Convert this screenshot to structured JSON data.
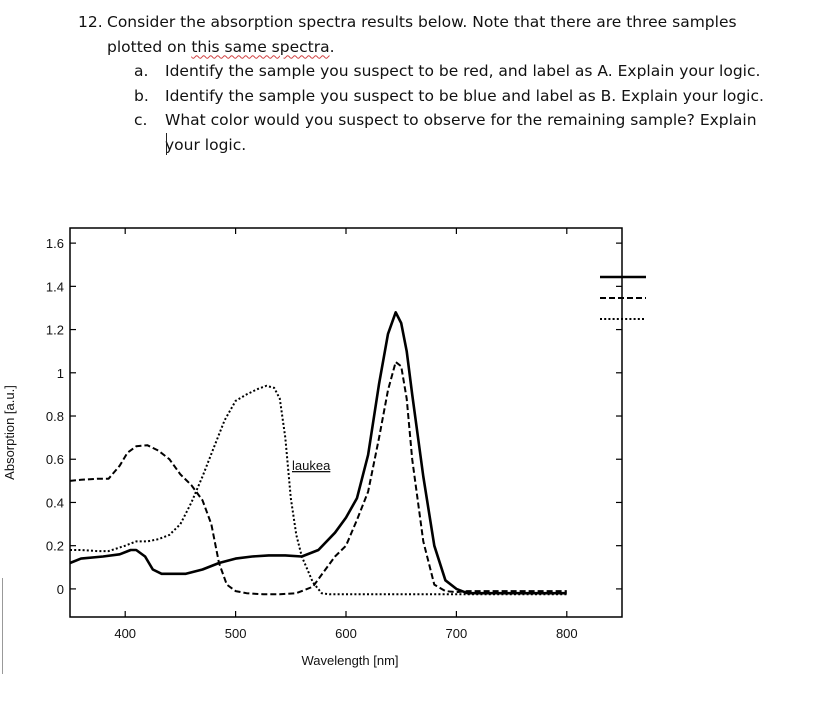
{
  "question": {
    "number": "12.",
    "text_part1": "Consider the absorption spectra results below. Note that there are three samples",
    "text_part2_prefix": "plotted on ",
    "text_part2_underlined": "this same spectra",
    "text_part2_suffix": ".",
    "parts": [
      {
        "letter": "a.",
        "text": "Identify the sample you suspect to be red, and label as A. Explain your logic."
      },
      {
        "letter": "b.",
        "text": "Identify the sample you suspect to be blue and label as B.  Explain your logic."
      },
      {
        "letter": "c.",
        "text": "What color would you suspect to observe for the remaining sample? Explain"
      }
    ],
    "part_c_continuation": "your logic."
  },
  "chart_data": {
    "type": "line",
    "xlabel": "Wavelength [nm]",
    "ylabel": "Absorption [a.u.]",
    "xlim": [
      350,
      850
    ],
    "ylim": [
      -0.13,
      1.67
    ],
    "xticks": [
      400,
      500,
      600,
      700,
      800
    ],
    "yticks": [
      0,
      0.2,
      0.4,
      0.6,
      0.8,
      1,
      1.2,
      1.4,
      1.6
    ],
    "ytick_labels": [
      "0",
      "0.2",
      "0.4",
      "0.6",
      "0.8",
      "1",
      "1.2",
      "1.4",
      "1.6"
    ],
    "grid": false,
    "legend_position": "top-right",
    "annotation": "laukea",
    "series": [
      {
        "style": "solid",
        "x": [
          350,
          360,
          380,
          395,
          405,
          410,
          418,
          425,
          433,
          440,
          455,
          470,
          485,
          500,
          515,
          530,
          545,
          560,
          575,
          590,
          600,
          610,
          620,
          630,
          638,
          645,
          650,
          655,
          660,
          670,
          680,
          690,
          700,
          710,
          720,
          760,
          800
        ],
        "y": [
          0.12,
          0.14,
          0.15,
          0.16,
          0.18,
          0.18,
          0.15,
          0.09,
          0.07,
          0.07,
          0.07,
          0.09,
          0.12,
          0.14,
          0.15,
          0.155,
          0.155,
          0.15,
          0.18,
          0.26,
          0.33,
          0.42,
          0.62,
          0.95,
          1.18,
          1.28,
          1.23,
          1.1,
          0.9,
          0.52,
          0.2,
          0.04,
          0.0,
          -0.02,
          -0.02,
          -0.02,
          -0.02
        ]
      },
      {
        "style": "dashed",
        "x": [
          350,
          360,
          375,
          385,
          395,
          402,
          410,
          420,
          430,
          440,
          450,
          460,
          470,
          478,
          485,
          492,
          500,
          510,
          525,
          540,
          555,
          570,
          580,
          590,
          600,
          610,
          620,
          630,
          638,
          645,
          650,
          655,
          660,
          670,
          680,
          690,
          700,
          710,
          760,
          800
        ],
        "y": [
          0.5,
          0.505,
          0.51,
          0.51,
          0.57,
          0.63,
          0.66,
          0.665,
          0.64,
          0.6,
          0.53,
          0.48,
          0.41,
          0.3,
          0.12,
          0.02,
          -0.01,
          -0.02,
          -0.025,
          -0.025,
          -0.02,
          0.01,
          0.08,
          0.15,
          0.2,
          0.32,
          0.45,
          0.7,
          0.92,
          1.05,
          1.03,
          0.88,
          0.6,
          0.22,
          0.02,
          -0.01,
          -0.015,
          -0.01,
          -0.01,
          -0.01
        ]
      },
      {
        "style": "dotted",
        "x": [
          350,
          360,
          375,
          385,
          400,
          410,
          420,
          430,
          440,
          450,
          460,
          470,
          480,
          490,
          500,
          510,
          520,
          528,
          535,
          540,
          545,
          550,
          555,
          560,
          570,
          578,
          585,
          600,
          700,
          800
        ],
        "y": [
          0.18,
          0.18,
          0.175,
          0.175,
          0.2,
          0.22,
          0.22,
          0.23,
          0.25,
          0.3,
          0.4,
          0.52,
          0.65,
          0.78,
          0.87,
          0.9,
          0.925,
          0.94,
          0.93,
          0.88,
          0.7,
          0.42,
          0.25,
          0.15,
          0.03,
          -0.02,
          -0.025,
          -0.025,
          -0.025,
          -0.025
        ]
      }
    ]
  },
  "colors": {
    "text": "#111111",
    "spellcheck_underline": "#d04040",
    "line": "#000000"
  }
}
